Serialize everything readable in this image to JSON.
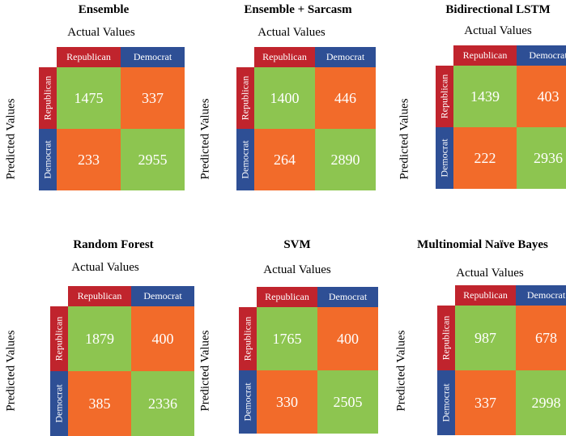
{
  "labels": {
    "actual": "Actual Values",
    "predicted": "Predicted Values",
    "republican": "Republican",
    "democrat": "Democrat"
  },
  "colors": {
    "header_republican": "#c0242d",
    "header_democrat": "#2e4f95",
    "correct_cell": "#8dc550",
    "incorrect_cell": "#f26b2a"
  },
  "panels": [
    {
      "title": "Ensemble",
      "cells": [
        [
          1475,
          337
        ],
        [
          233,
          2955
        ]
      ]
    },
    {
      "title": "Ensemble + Sarcasm",
      "cells": [
        [
          1400,
          446
        ],
        [
          264,
          2890
        ]
      ]
    },
    {
      "title": "Bidirectional LSTM",
      "cells": [
        [
          1439,
          403
        ],
        [
          222,
          2936
        ]
      ]
    },
    {
      "title": "Random Forest",
      "cells": [
        [
          1879,
          400
        ],
        [
          385,
          2336
        ]
      ]
    },
    {
      "title": "SVM",
      "cells": [
        [
          1765,
          400
        ],
        [
          330,
          2505
        ]
      ]
    },
    {
      "title": "Multinomial Naïve Bayes",
      "cells": [
        [
          987,
          678
        ],
        [
          337,
          2998
        ]
      ]
    }
  ]
}
